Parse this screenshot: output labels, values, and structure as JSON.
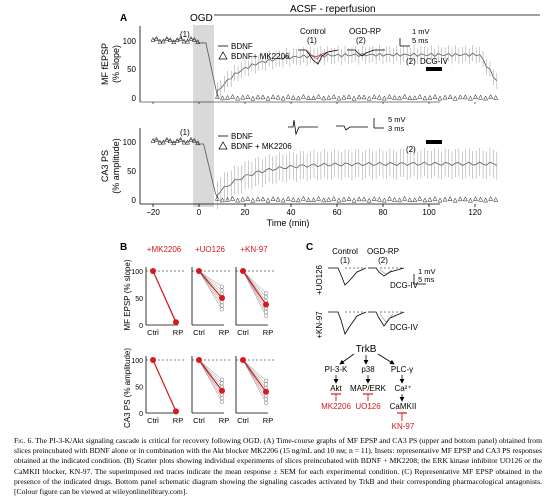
{
  "panelA": {
    "label": "A",
    "ogd_label": "OGD",
    "acsf_label": "ACSF - reperfusion",
    "top": {
      "ylabel_line1": "MF fEPSP",
      "ylabel_line2": "(% slope)",
      "yticks": [
        "100",
        "50",
        "0"
      ],
      "legend_bdnf": "BDNF",
      "legend_mk": "BDNF+ MK2206",
      "inset_control": "Control",
      "inset_ogd": "OGD-RP",
      "inset_n1": "(1)",
      "inset_n2": "(2)",
      "mark1": "(1)",
      "mark2": "(2)",
      "scale_mv": "1 mV",
      "scale_ms": "5 ms",
      "dcg": "DCG-IV"
    },
    "bottom": {
      "ylabel_line1": "CA3 PS",
      "ylabel_line2": "(% amplitude)",
      "yticks": [
        "100",
        "50",
        "0"
      ],
      "legend_bdnf": "BDNF",
      "legend_mk": "BDNF + MK2206",
      "mark1": "(1)",
      "mark2": "(2)",
      "scale_mv": "5 mV",
      "scale_ms": "3 ms"
    },
    "xticks": [
      "−20",
      "0",
      "20",
      "40",
      "60",
      "80",
      "100",
      "120"
    ],
    "xlabel": "Time (min)"
  },
  "panelB": {
    "label": "B",
    "drugs": [
      "+MK2206",
      "+UO126",
      "+KN-97"
    ],
    "top_ylabel_line1": "MF EPSP (% slope)",
    "bottom_ylabel": "CA3 PS (% amplitude)",
    "yticks": [
      "100",
      "50",
      "0"
    ],
    "xcats": [
      "Ctrl",
      "RP"
    ]
  },
  "panelC": {
    "label": "C",
    "control": "Control",
    "ogd": "OGD-RP",
    "n1": "(1)",
    "n2": "(2)",
    "row1": "+UO126",
    "row2": "+KN-97",
    "dcg": "DCG-IV",
    "scale_mv": "1 mV",
    "scale_ms": "5 ms",
    "trkb": "TrkB",
    "pi3k": "PI-3-K",
    "akt": "Akt",
    "p38": "p38",
    "maperk": "MAP/ERK",
    "plc": "PLC-γ",
    "ca": "Ca²⁺",
    "camkii": "CaMKII",
    "inh_mk": "MK2206",
    "inh_uo": "UO126",
    "inh_kn": "KN-97"
  },
  "caption": {
    "fig": "Fig. 6.",
    "text": " The PI-3-K/Akt signaling cascade is critical for recovery following OGD. (A) Time-course graphs of MF EPSP and CA3 PS (upper and bottom panel) obtained from slices preincubated with BDNF alone or in combination with the Akt blocker MK2206 (15 ng/mL and 10 nм; n = 11). Insets: representative MF EPSP and CA3 PS responses obtained at the indicated condition. (B) Scatter plots showing individual experiments of slices preincubated with BDNF + MK2208; the ERK kinase inhibitor UO126 or the CaMKII blocker, KN-97. The superimposed red traces indicate the mean response ± SEM for each experimental condition. (C) Representative MF EPSP obtained in the presence of the indicated drugs. Bottom panel schematic diagram showing the signaling cascades activated by TrkB and their corresponding pharmacological antagonists. [Colour figure can be viewed at wileyonlinelibrary.com]."
  },
  "colors": {
    "red": "#d7191c",
    "grey": "#d9d9d9",
    "dark": "#555555"
  }
}
